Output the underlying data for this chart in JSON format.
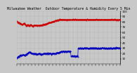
{
  "title": "Milwaukee Weather  Outdoor Temperature & Humidity Every 5 Min",
  "bg_color": "#c8c8c8",
  "plot_bg_color": "#c8c8c8",
  "grid_color": "#aaaaaa",
  "temp_color": "#cc0000",
  "humidity_color": "#0000bb",
  "ylim": [
    0,
    100
  ],
  "yticks": [
    10,
    20,
    30,
    40,
    50,
    60,
    70,
    80,
    90,
    100
  ],
  "num_points": 288,
  "tick_fontsize": 3.0,
  "title_fontsize": 3.5,
  "marker_size": 0.8,
  "linewidth": 0.5,
  "temp_segment_y": [
    80,
    80,
    79,
    79,
    78,
    78,
    78,
    77,
    77,
    77,
    76,
    76,
    76,
    75,
    75,
    75,
    76,
    76,
    77,
    77,
    77,
    76,
    75,
    74,
    73,
    73,
    73,
    73,
    74,
    74,
    74,
    74,
    73,
    73,
    73,
    73,
    74,
    74,
    74,
    74,
    73,
    73,
    72,
    72,
    72,
    72,
    73,
    73,
    73,
    73,
    73,
    73,
    73,
    73,
    73,
    73,
    73,
    73,
    73,
    73,
    73,
    73,
    73,
    73,
    74,
    74,
    74,
    74,
    74,
    74,
    74,
    74,
    74,
    74,
    75,
    75,
    75,
    75,
    75,
    75,
    76,
    76,
    76,
    76,
    77,
    77,
    77,
    77,
    78,
    78,
    78,
    78,
    78,
    78,
    79,
    79,
    79,
    79,
    80,
    80,
    80,
    80,
    81,
    81,
    81,
    81,
    82,
    82,
    82,
    82,
    83,
    83,
    83,
    83,
    83,
    83,
    84,
    84,
    84,
    84,
    84,
    84,
    84,
    84,
    84,
    84,
    84,
    84,
    84,
    84,
    84,
    84,
    84,
    84,
    84,
    84,
    84,
    84,
    84,
    84,
    84,
    84,
    84,
    84,
    84,
    84,
    84,
    84,
    84,
    84,
    84,
    84,
    84,
    84,
    84,
    84,
    84,
    84,
    84,
    84,
    84,
    84,
    84,
    84,
    84,
    84,
    84,
    84,
    84,
    84,
    84,
    84,
    84,
    84,
    84,
    84,
    84,
    84,
    84,
    84,
    84,
    84,
    84,
    84,
    84,
    84,
    84,
    84,
    84,
    84,
    84,
    84,
    84,
    84,
    84,
    84,
    84,
    84,
    84,
    84,
    84,
    84,
    84,
    84,
    84,
    84,
    84,
    84,
    84,
    84,
    84,
    84,
    84,
    84,
    84,
    84,
    84,
    84,
    84,
    84,
    84,
    84,
    84,
    84,
    84,
    84,
    84,
    84,
    84,
    84,
    84,
    84,
    84,
    84,
    84,
    84,
    84,
    84,
    84,
    84,
    84,
    84,
    84,
    84,
    84,
    84,
    84,
    84,
    84,
    84,
    84,
    84,
    84,
    84,
    84,
    84,
    84,
    84,
    84,
    84,
    84,
    84,
    84,
    84,
    84,
    84,
    84,
    84,
    84,
    84,
    84,
    84,
    84,
    84,
    84,
    84,
    84,
    84,
    84,
    84,
    84,
    84,
    84,
    84,
    84,
    84,
    84,
    84
  ],
  "humidity_segment_y": [
    12,
    12,
    13,
    13,
    14,
    14,
    14,
    15,
    15,
    15,
    16,
    16,
    16,
    17,
    17,
    17,
    17,
    17,
    17,
    17,
    17,
    17,
    17,
    18,
    18,
    18,
    18,
    19,
    19,
    20,
    20,
    21,
    22,
    22,
    23,
    23,
    22,
    22,
    21,
    21,
    20,
    20,
    20,
    20,
    20,
    20,
    20,
    20,
    20,
    20,
    20,
    19,
    19,
    19,
    19,
    19,
    19,
    19,
    19,
    19,
    19,
    19,
    19,
    19,
    19,
    19,
    19,
    19,
    19,
    19,
    19,
    19,
    19,
    19,
    20,
    20,
    20,
    20,
    20,
    20,
    20,
    20,
    20,
    20,
    20,
    20,
    20,
    20,
    20,
    20,
    20,
    20,
    20,
    20,
    20,
    20,
    20,
    20,
    20,
    20,
    20,
    20,
    20,
    20,
    20,
    20,
    20,
    20,
    20,
    20,
    21,
    21,
    21,
    21,
    21,
    21,
    22,
    22,
    22,
    22,
    23,
    23,
    23,
    23,
    24,
    24,
    24,
    24,
    24,
    24,
    24,
    24,
    24,
    24,
    24,
    24,
    24,
    24,
    24,
    24,
    24,
    24,
    24,
    24,
    24,
    24,
    24,
    24,
    24,
    24,
    15,
    15,
    15,
    15,
    15,
    15,
    15,
    15,
    15,
    15,
    15,
    15,
    15,
    15,
    15,
    15,
    15,
    15,
    15,
    15,
    30,
    30,
    30,
    30,
    30,
    30,
    30,
    30,
    30,
    30,
    30,
    30,
    30,
    30,
    30,
    30,
    30,
    30,
    30,
    30,
    30,
    30,
    30,
    30,
    30,
    30,
    30,
    30,
    30,
    30,
    30,
    30,
    30,
    30,
    30,
    30,
    30,
    30,
    30,
    30,
    30,
    30,
    30,
    30,
    30,
    30,
    30,
    30,
    30,
    30,
    30,
    30,
    30,
    30,
    30,
    30,
    30,
    30,
    30,
    30,
    30,
    30,
    30,
    30,
    30,
    30,
    30,
    30,
    30,
    30,
    30,
    30,
    30,
    30,
    30,
    30,
    30,
    30,
    30,
    30,
    30,
    30,
    30,
    30,
    30,
    30,
    30,
    30,
    30,
    30,
    30,
    30,
    30,
    30,
    30,
    30,
    30,
    30,
    30,
    30,
    30,
    30,
    30,
    30,
    30,
    30,
    30,
    30,
    30,
    30,
    30,
    30,
    30,
    30,
    30,
    30,
    30,
    30
  ]
}
